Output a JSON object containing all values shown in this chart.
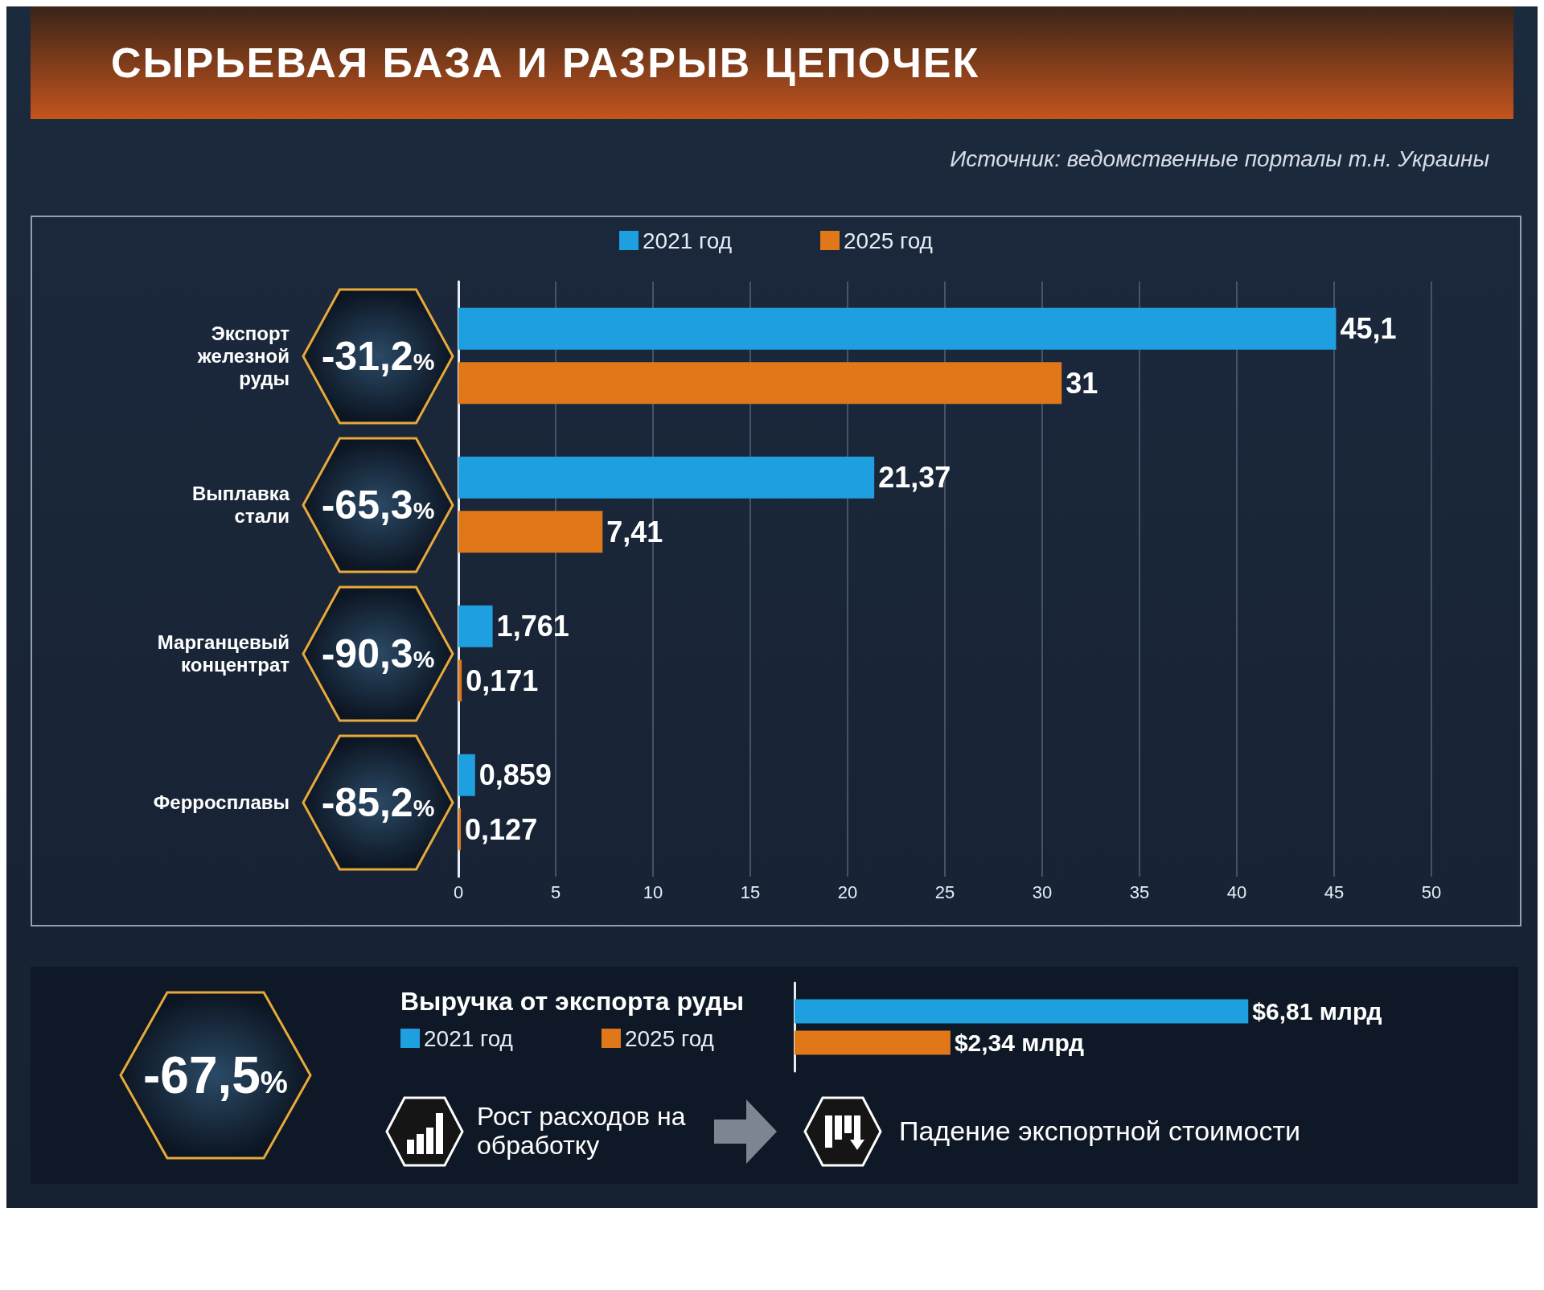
{
  "chart_data": [
    {
      "type": "bar",
      "orientation": "horizontal",
      "title": "СЫРЬЕВАЯ БАЗА И РАЗРЫВ ЦЕПОЧЕК",
      "categories": [
        "Экспорт железной руды",
        "Выплавка стали",
        "Марганцевый концентрат",
        "Ферросплавы"
      ],
      "series": [
        {
          "name": "2021 год",
          "color": "#1e9fe0",
          "values": [
            45.1,
            21.37,
            1.761,
            0.859
          ],
          "value_labels": [
            "45,1",
            "21,37",
            "1,761",
            "0,859"
          ]
        },
        {
          "name": "2025 год",
          "color": "#e0781a",
          "values": [
            31,
            7.41,
            0.171,
            0.127
          ],
          "value_labels": [
            "31",
            "7,41",
            "0,171",
            "0,127"
          ]
        }
      ],
      "xlim": [
        0,
        50
      ],
      "xticks": [
        0,
        5,
        10,
        15,
        20,
        25,
        30,
        35,
        40,
        45,
        50
      ],
      "grid": "x",
      "legend": "top",
      "annotations": [
        "-31,2%",
        "-65,3%",
        "-90,3%",
        "-85,2%",
        "Источник: ведомственные порталы т.н. Украины"
      ]
    },
    {
      "type": "bar",
      "orientation": "horizontal",
      "title": "Выручка от экспорта руды",
      "categories": [
        null
      ],
      "series": [
        {
          "name": "2021 год",
          "color": "#1e9fe0",
          "values": [
            6.81
          ],
          "value_labels": [
            "$6,81 млрд"
          ]
        },
        {
          "name": "2025 год",
          "color": "#e0781a",
          "values": [
            2.34
          ],
          "value_labels": [
            "$2,34 млрд"
          ]
        }
      ],
      "legend": "left",
      "annotations": [
        "-67,5%",
        "Рост расходов на обработку",
        "Падение экспортной стоимости"
      ]
    }
  ]
}
